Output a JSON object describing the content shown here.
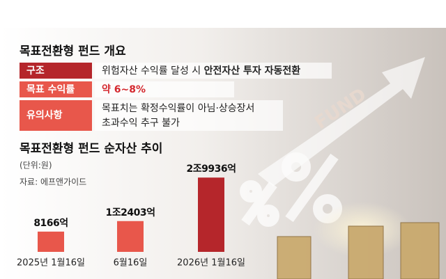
{
  "overview": {
    "title": "목표전환형 펀드 개요",
    "rows": [
      {
        "label": "구조",
        "value": "위험자산 수익률 달성 시 ",
        "value_bold": "안전자산 투자 자동전환"
      },
      {
        "label": "목표 수익률",
        "value": "약 6~8%"
      },
      {
        "label": "유의사항",
        "value": "목표치는 확정수익률이 아님·상승장서",
        "value_line2": "초과수익 추구 불가"
      }
    ]
  },
  "background": {
    "text": "FUND"
  },
  "chart_data": {
    "type": "bar",
    "title": "목표전환형 펀드 순자산 추이",
    "unit": "(단위:원)",
    "source": "자료: 에프앤가이드",
    "categories": [
      "2025년 1월16일",
      "6월16일",
      "2026년 1월16일"
    ],
    "values": [
      8166,
      12403,
      29936
    ],
    "value_labels": [
      "8166억",
      "1조2403억",
      "2조9936억"
    ],
    "colors": [
      "#e8574b",
      "#e8574b",
      "#b5262b"
    ]
  }
}
